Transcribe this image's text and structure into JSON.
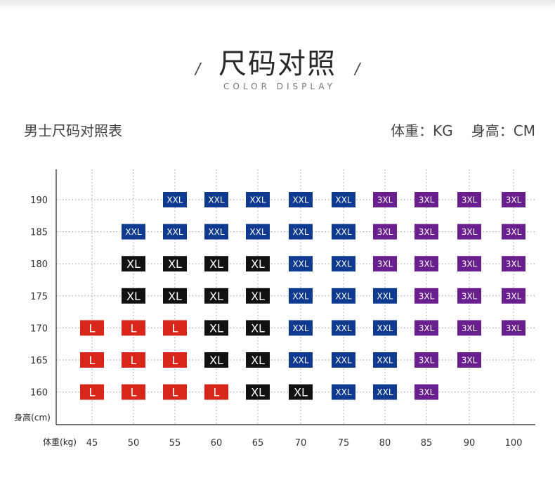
{
  "header": {
    "title": "尺码对照",
    "subtitle": "COLOR DISPLAY",
    "slash_left": "/",
    "slash_right": "/"
  },
  "table_name": "男士尺码对照表",
  "units": {
    "weight": "体重：KG",
    "height": "身高：CM"
  },
  "colors": {
    "L": "#d8261b",
    "XL": "#111111",
    "XXL": "#0f3a8f",
    "3XL": "#6a1f8f",
    "grid": "#9a9a9a",
    "axis": "#222222"
  },
  "chart_data": {
    "type": "table",
    "xlabel": "体重(kg)",
    "ylabel": "身高(cm)",
    "x": [
      45,
      50,
      55,
      60,
      65,
      70,
      75,
      80,
      85,
      90,
      100
    ],
    "y": [
      190,
      185,
      180,
      175,
      170,
      165,
      160
    ],
    "grid": true,
    "cells": [
      {
        "y": 190,
        "sizes": [
          null,
          null,
          "XXL",
          "XXL",
          "XXL",
          "XXL",
          "XXL",
          "3XL",
          "3XL",
          "3XL",
          "3XL"
        ]
      },
      {
        "y": 185,
        "sizes": [
          null,
          "XXL",
          "XXL",
          "XXL",
          "XXL",
          "XXL",
          "XXL",
          "3XL",
          "3XL",
          "3XL",
          "3XL"
        ]
      },
      {
        "y": 180,
        "sizes": [
          null,
          "XL",
          "XL",
          "XL",
          "XL",
          "XXL",
          "XXL",
          "3XL",
          "3XL",
          "3XL",
          "3XL"
        ]
      },
      {
        "y": 175,
        "sizes": [
          null,
          "XL",
          "XL",
          "XL",
          "XL",
          "XXL",
          "XXL",
          "XXL",
          "3XL",
          "3XL",
          "3XL"
        ]
      },
      {
        "y": 170,
        "sizes": [
          "L",
          "L",
          "L",
          "XL",
          "XL",
          "XXL",
          "XXL",
          "XXL",
          "3XL",
          "3XL",
          "3XL"
        ]
      },
      {
        "y": 165,
        "sizes": [
          "L",
          "L",
          "L",
          "XL",
          "XL",
          "XXL",
          "XXL",
          "XXL",
          "3XL",
          "3XL",
          null
        ]
      },
      {
        "y": 160,
        "sizes": [
          "L",
          "L",
          "L",
          "L",
          "XL",
          "XL",
          "XXL",
          "XXL",
          "3XL",
          null,
          null
        ]
      }
    ]
  }
}
